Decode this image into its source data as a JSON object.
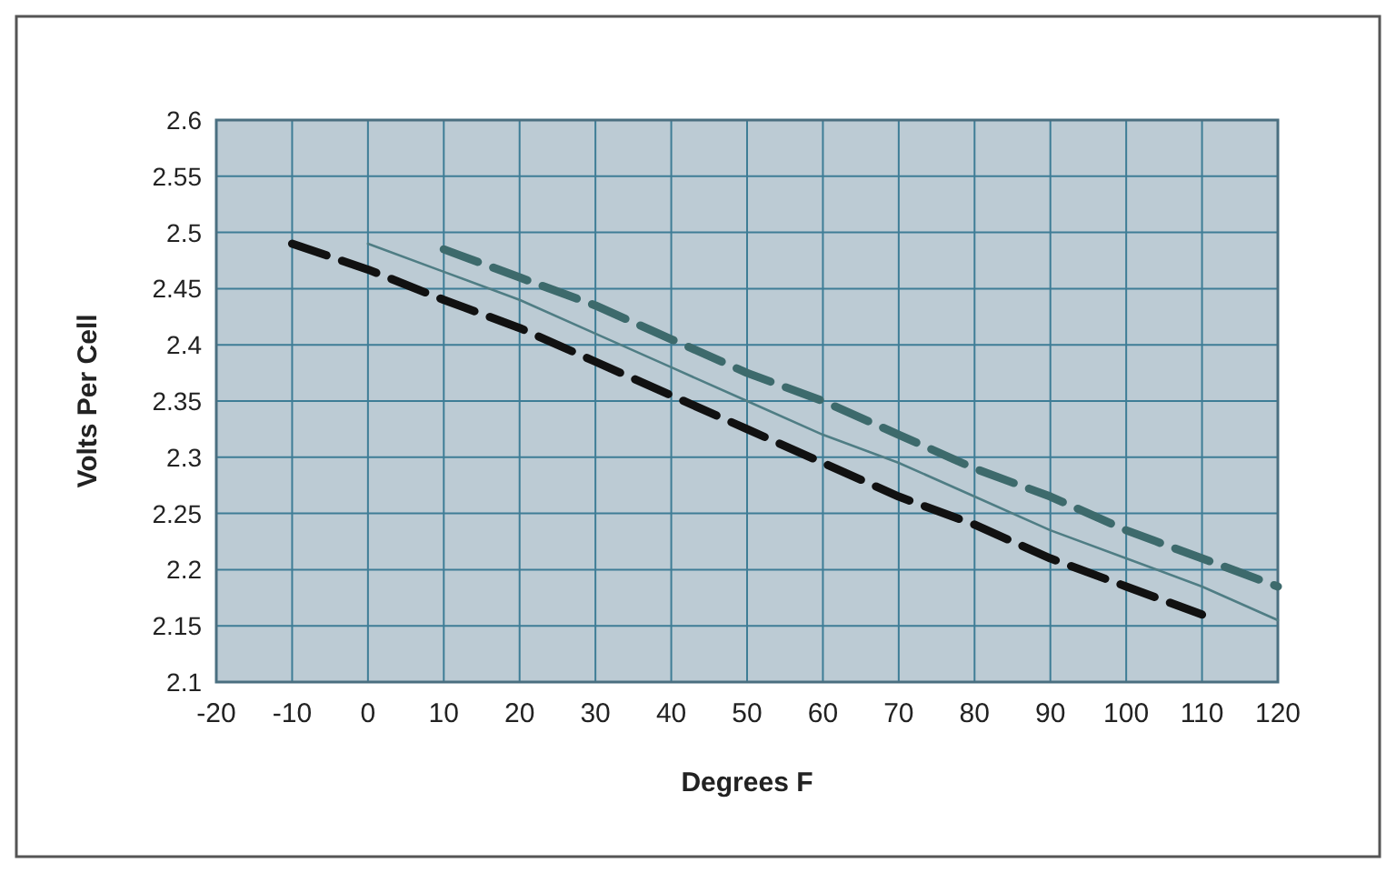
{
  "chart_data": {
    "type": "line",
    "xlabel": "Degrees F",
    "ylabel": "Volts Per Cell",
    "xlim": [
      -20,
      120
    ],
    "xticks": [
      -20,
      -10,
      0,
      10,
      20,
      30,
      40,
      50,
      60,
      70,
      80,
      90,
      100,
      110,
      120
    ],
    "ylim": [
      2.1,
      2.6
    ],
    "yticks": [
      2.1,
      2.15,
      2.2,
      2.25,
      2.3,
      2.35,
      2.4,
      2.45,
      2.5,
      2.55,
      2.6
    ],
    "grid": true,
    "series": [
      {
        "color": "#111111",
        "line_style": "dashed",
        "x": [
          -10,
          0,
          10,
          20,
          30,
          40,
          50,
          60,
          70,
          80,
          90,
          100,
          110
        ],
        "values": [
          2.49,
          2.467,
          2.44,
          2.415,
          2.385,
          2.355,
          2.325,
          2.295,
          2.265,
          2.24,
          2.21,
          2.185,
          2.16
        ]
      },
      {
        "color": "#4f7d84",
        "line_style": "solid",
        "x": [
          0,
          10,
          20,
          30,
          40,
          50,
          60,
          70,
          80,
          90,
          100,
          110,
          120
        ],
        "values": [
          2.49,
          2.465,
          2.44,
          2.41,
          2.38,
          2.35,
          2.32,
          2.295,
          2.265,
          2.235,
          2.21,
          2.185,
          2.155
        ]
      },
      {
        "color": "#3d6a6c",
        "line_style": "dashed",
        "x": [
          10,
          20,
          30,
          40,
          50,
          60,
          70,
          80,
          90,
          100,
          110,
          120
        ],
        "values": [
          2.485,
          2.46,
          2.435,
          2.405,
          2.375,
          2.35,
          2.32,
          2.29,
          2.265,
          2.235,
          2.21,
          2.185
        ]
      }
    ]
  }
}
